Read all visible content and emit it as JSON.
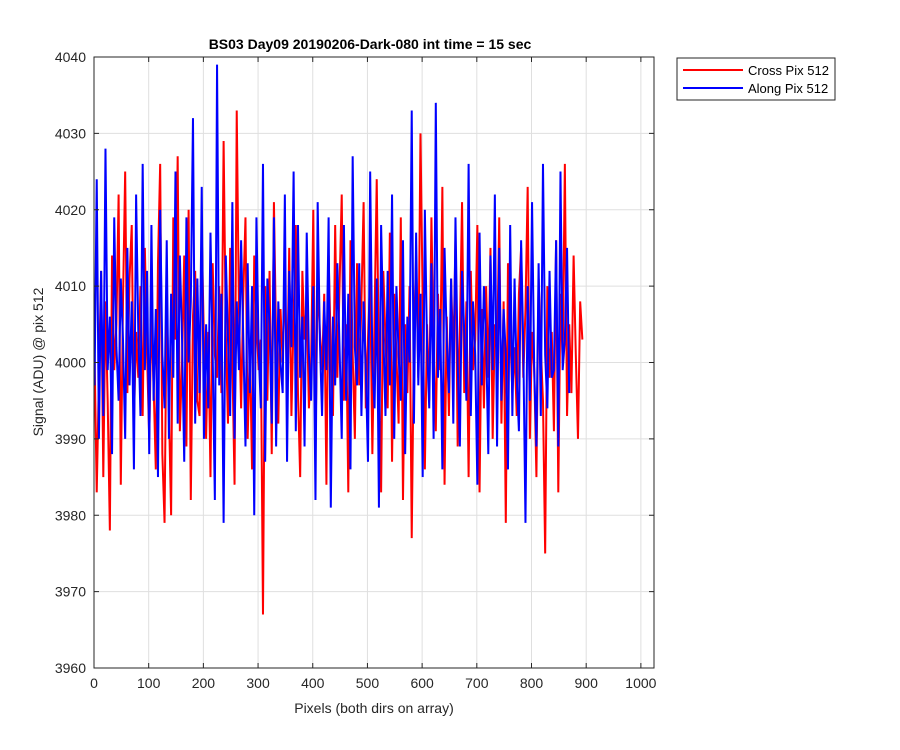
{
  "chart_data": {
    "type": "line",
    "title": "BS03 Day09 20190206-Dark-080 int time = 15 sec",
    "xlabel": "Pixels (both dirs on array)",
    "ylabel": "Signal (ADU) @ pix 512",
    "xlim": [
      0,
      1024
    ],
    "ylim": [
      3960,
      4040
    ],
    "xticks": [
      0,
      100,
      200,
      300,
      400,
      500,
      600,
      700,
      800,
      900,
      1000
    ],
    "yticks": [
      3960,
      3970,
      3980,
      3990,
      4000,
      4010,
      4020,
      4030,
      4040
    ],
    "grid": true,
    "legend_position": "outside-top-right",
    "x_start": 1,
    "x_step": 4,
    "series": [
      {
        "name": "Cross Pix 512",
        "color": "#ff0000",
        "values": [
          4001,
          3983,
          3998,
          4012,
          3985,
          4008,
          3995,
          3978,
          4014,
          3999,
          4005,
          4022,
          3984,
          4008,
          4025,
          3996,
          4011,
          4018,
          3992,
          4004,
          3998,
          4010,
          3993,
          4015,
          4001,
          3990,
          4006,
          3997,
          3986,
          4013,
          4026,
          3988,
          3979,
          4009,
          3994,
          3980,
          4019,
          4003,
          4027,
          3991,
          4000,
          4014,
          3989,
          4020,
          3982,
          4006,
          4012,
          3995,
          3993,
          4017,
          4003,
          3990,
          4004,
          3985,
          4013,
          4001,
          3998,
          4010,
          3996,
          4029,
          4004,
          3992,
          4015,
          4000,
          3984,
          4033,
          4007,
          3994,
          4009,
          4019,
          3990,
          4002,
          3986,
          4014,
          4006,
          3999,
          4003,
          3967,
          4010,
          3995,
          4012,
          3988,
          4021,
          4003,
          3992,
          4007,
          4000,
          4011,
          3997,
          4015,
          3993,
          4006,
          4018,
          3996,
          3985,
          4012,
          4003,
          4008,
          3994,
          4000,
          4020,
          3989,
          4011,
          4004,
          3999,
          4009,
          3984,
          4014,
          4002,
          3993,
          4018,
          3998,
          4010,
          4022,
          3995,
          4005,
          3983,
          4016,
          4001,
          3990,
          4013,
          3997,
          4008,
          4021,
          3994,
          4003,
          4011,
          3988,
          4006,
          4024,
          3999,
          3983,
          4012,
          4003,
          3994,
          4017,
          3987,
          4009,
          4001,
          3992,
          4019,
          3982,
          4005,
          3996,
          4010,
          3977,
          4003,
          4014,
          3998,
          4030,
          4008,
          3986,
          4005,
          3995,
          4019,
          4002,
          3991,
          4009,
          3999,
          4023,
          3984,
          4006,
          3993,
          4011,
          4000,
          4016,
          3989,
          4004,
          4021,
          3996,
          4008,
          3985,
          4012,
          3999,
          4003,
          4018,
          3983,
          4007,
          3994,
          4010,
          3998,
          4015,
          3990,
          4005,
          4001,
          4019,
          3992,
          4008,
          3979,
          4013,
          4004,
          3996,
          4002,
          3993,
          4009,
          4015,
          3998,
          4007,
          4023,
          3990,
          4004,
          3999,
          3985,
          4011,
          4002,
          3995,
          3975,
          4010,
          3998,
          4004,
          3991,
          4016,
          3983,
          4009,
          4000,
          4026,
          3993,
          4005,
          3996,
          4014,
          4001,
          3990,
          4008,
          4003
        ]
      },
      {
        "name": "Along Pix 512",
        "color": "#0000ff",
        "values": [
          3997,
          4024,
          3990,
          4012,
          3993,
          4028,
          3999,
          4006,
          3988,
          4019,
          4002,
          3995,
          4011,
          4003,
          3990,
          4015,
          3997,
          4008,
          3986,
          4022,
          4004,
          3993,
          4026,
          3999,
          4012,
          3988,
          4018,
          3995,
          4007,
          3985,
          4020,
          4001,
          3994,
          4016,
          3990,
          4009,
          3998,
          4025,
          3992,
          4014,
          4003,
          3987,
          4019,
          4000,
          4008,
          4032,
          3992,
          4011,
          3996,
          4023,
          3990,
          4005,
          3994,
          4017,
          4001,
          3982,
          4039,
          3997,
          4009,
          3979,
          4014,
          4003,
          3993,
          4021,
          3990,
          4008,
          3999,
          4016,
          4003,
          3989,
          4013,
          3996,
          4010,
          3980,
          4019,
          4002,
          3994,
          4026,
          3987,
          4011,
          4005,
          3992,
          4019,
          3989,
          4008,
          4000,
          3996,
          4022,
          3987,
          4012,
          4002,
          4025,
          3991,
          4018,
          3998,
          4006,
          3989,
          4017,
          4001,
          3995,
          4010,
          3982,
          4021,
          4003,
          3993,
          4008,
          3999,
          4019,
          3981,
          4006,
          3997,
          4013,
          4002,
          3990,
          4018,
          3995,
          4009,
          3986,
          4027,
          4002,
          3997,
          4013,
          3993,
          4008,
          3999,
          3987,
          4025,
          4000,
          3994,
          4011,
          3981,
          4018,
          4004,
          3993,
          4012,
          3997,
          4022,
          3990,
          4010,
          4001,
          3995,
          4016,
          3988,
          4006,
          4000,
          4033,
          3992,
          4017,
          3997,
          4009,
          3985,
          4020,
          4002,
          3994,
          4013,
          3990,
          4034,
          3998,
          4007,
          3986,
          4015,
          4003,
          3996,
          4011,
          3992,
          4019,
          4000,
          3989,
          4012,
          4004,
          3995,
          4026,
          3993,
          4008,
          4001,
          3984,
          4017,
          3997,
          4010,
          4003,
          3988,
          4014,
          3999,
          4022,
          3989,
          4015,
          3995,
          4007,
          4001,
          3986,
          4018,
          3993,
          4011,
          3998,
          3991,
          4016,
          4002,
          3979,
          4010,
          3995,
          4021,
          3999,
          3989,
          4013,
          3993,
          4026,
          4001,
          3994,
          4012,
          3998,
          3999,
          4016,
          3989,
          4025,
          3999,
          4003,
          4015,
          3996
        ]
      }
    ]
  }
}
